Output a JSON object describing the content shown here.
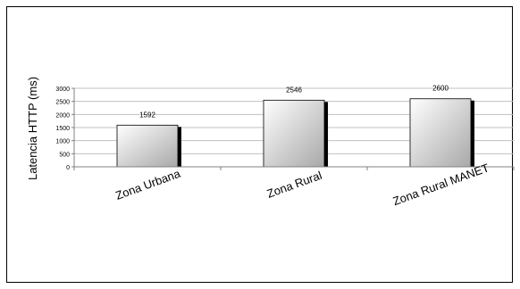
{
  "chart_data": {
    "type": "bar",
    "categories": [
      "Zona Urbana",
      "Zona Rural",
      "Zona Rural MANET"
    ],
    "values": [
      1592,
      2546,
      2600
    ],
    "data_labels": [
      "1592",
      "2546",
      "2600"
    ],
    "ylabel": "Latencia HTTP (ms)",
    "xlabel": "",
    "title": "",
    "ylim": [
      0,
      3000
    ],
    "yticks": [
      0,
      500,
      1000,
      1500,
      2000,
      2500,
      3000
    ],
    "grid": true,
    "legend": "none",
    "colors": {
      "bar_light": "#ffffff",
      "bar_dark": "#a8a8a8",
      "shadow": "#000000",
      "grid": "#c0c0c0",
      "axis": "#808080"
    }
  }
}
